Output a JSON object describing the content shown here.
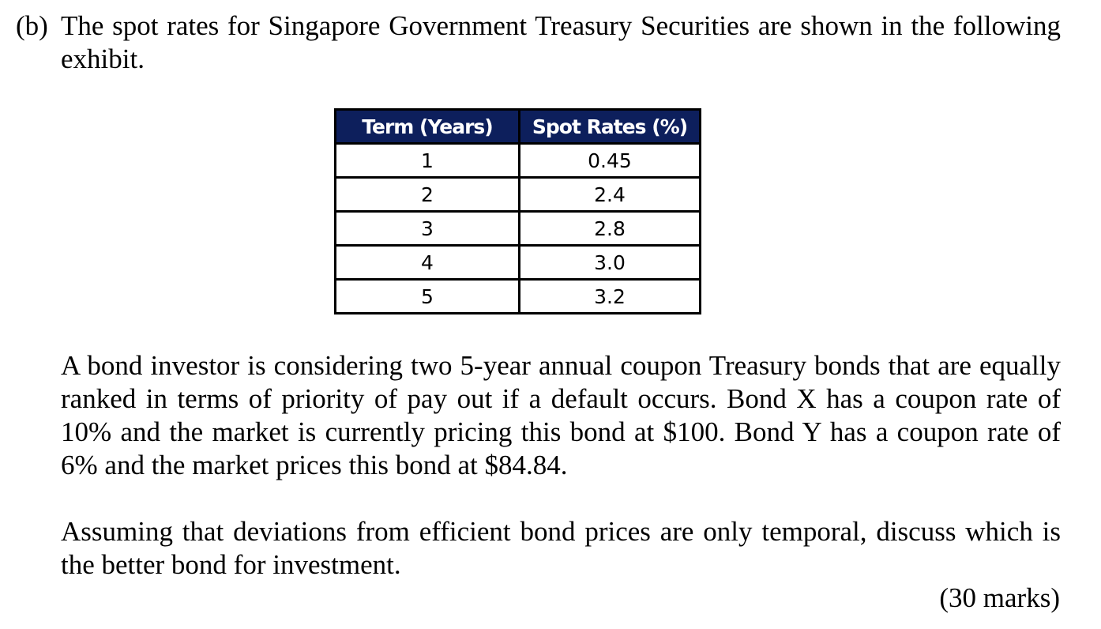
{
  "question": {
    "label": "(b)",
    "intro": "The spot rates for Singapore Government Treasury Securities are shown in the following exhibit."
  },
  "exhibit": {
    "headers": [
      "Term (Years)",
      "Spot Rates (%)"
    ],
    "rows": [
      [
        "1",
        "0.45"
      ],
      [
        "2",
        "2.4"
      ],
      [
        "3",
        "2.8"
      ],
      [
        "4",
        "3.0"
      ],
      [
        "5",
        "3.2"
      ]
    ],
    "colors": {
      "header_background": "#0d1f5c",
      "header_text": "#ffffff"
    }
  },
  "paragraphs": [
    "A bond investor is considering two 5-year annual coupon Treasury bonds that are equally ranked in terms of priority of pay out if a default occurs. Bond X has a coupon rate of 10% and the market is currently pricing this bond at $100. Bond Y has a coupon rate of 6% and the market prices this bond at $84.84.",
    "Assuming that deviations from efficient bond prices are only temporal, discuss which is the better bond for investment."
  ],
  "marks": "(30 marks)"
}
